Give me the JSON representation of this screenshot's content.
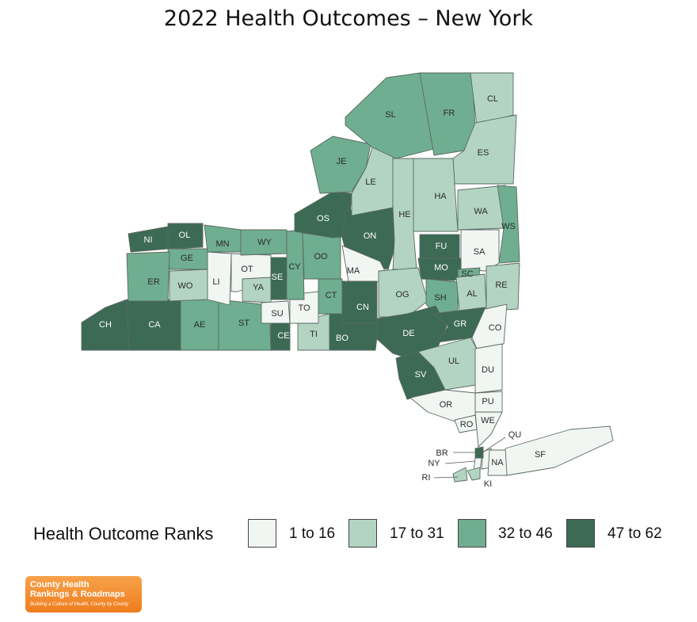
{
  "title": "2022 Health Outcomes – New York",
  "colors": {
    "q1": "#f1f6f3",
    "q2": "#b3d4c2",
    "q3": "#6fae90",
    "q4": "#3c6a55",
    "outline": "#5a6a62"
  },
  "legend": {
    "title": "Health Outcome Ranks",
    "items": [
      {
        "label": "1 to 16",
        "color": "#f1f6f3"
      },
      {
        "label": "17 to 31",
        "color": "#b3d4c2"
      },
      {
        "label": "32 to 46",
        "color": "#6fae90"
      },
      {
        "label": "47 to 62",
        "color": "#3c6a55"
      }
    ]
  },
  "logo": {
    "line1": "County Health",
    "line2": "Rankings & Roadmaps",
    "tagline": "Building a Culture of Health, County by County"
  },
  "counties": [
    {
      "code": "CH",
      "rank": "47 to 62"
    },
    {
      "code": "CA",
      "rank": "47 to 62"
    },
    {
      "code": "AE",
      "rank": "32 to 46"
    },
    {
      "code": "ST",
      "rank": "32 to 46"
    },
    {
      "code": "CE",
      "rank": "47 to 62"
    },
    {
      "code": "TI",
      "rank": "17 to 31"
    },
    {
      "code": "BO",
      "rank": "47 to 62"
    },
    {
      "code": "NI",
      "rank": "47 to 62"
    },
    {
      "code": "OL",
      "rank": "47 to 62"
    },
    {
      "code": "GE",
      "rank": "32 to 46"
    },
    {
      "code": "ER",
      "rank": "32 to 46"
    },
    {
      "code": "WO",
      "rank": "17 to 31"
    },
    {
      "code": "LI",
      "rank": "1 to 16"
    },
    {
      "code": "MN",
      "rank": "32 to 46"
    },
    {
      "code": "OT",
      "rank": "1 to 16"
    },
    {
      "code": "YA",
      "rank": "17 to 31"
    },
    {
      "code": "WY",
      "rank": "32 to 46"
    },
    {
      "code": "SE",
      "rank": "47 to 62"
    },
    {
      "code": "SU",
      "rank": "1 to 16"
    },
    {
      "code": "TO",
      "rank": "1 to 16"
    },
    {
      "code": "CY",
      "rank": "32 to 46"
    },
    {
      "code": "OO",
      "rank": "32 to 46"
    },
    {
      "code": "CT",
      "rank": "32 to 46"
    },
    {
      "code": "OS",
      "rank": "47 to 62"
    },
    {
      "code": "ON",
      "rank": "47 to 62"
    },
    {
      "code": "MA",
      "rank": "1 to 16"
    },
    {
      "code": "CN",
      "rank": "47 to 62"
    },
    {
      "code": "JE",
      "rank": "32 to 46"
    },
    {
      "code": "LE",
      "rank": "17 to 31"
    },
    {
      "code": "SL",
      "rank": "32 to 46"
    },
    {
      "code": "FR",
      "rank": "32 to 46"
    },
    {
      "code": "CL",
      "rank": "17 to 31"
    },
    {
      "code": "ES",
      "rank": "17 to 31"
    },
    {
      "code": "HA",
      "rank": "17 to 31"
    },
    {
      "code": "HE",
      "rank": "17 to 31"
    },
    {
      "code": "WA",
      "rank": "17 to 31"
    },
    {
      "code": "WS",
      "rank": "32 to 46"
    },
    {
      "code": "SA",
      "rank": "1 to 16"
    },
    {
      "code": "FU",
      "rank": "47 to 62"
    },
    {
      "code": "MO",
      "rank": "47 to 62"
    },
    {
      "code": "SC",
      "rank": "32 to 46"
    },
    {
      "code": "OG",
      "rank": "17 to 31"
    },
    {
      "code": "SH",
      "rank": "32 to 46"
    },
    {
      "code": "AL",
      "rank": "17 to 31"
    },
    {
      "code": "RE",
      "rank": "17 to 31"
    },
    {
      "code": "DE",
      "rank": "47 to 62"
    },
    {
      "code": "GR",
      "rank": "47 to 62"
    },
    {
      "code": "CO",
      "rank": "1 to 16"
    },
    {
      "code": "UL",
      "rank": "17 to 31"
    },
    {
      "code": "DU",
      "rank": "1 to 16"
    },
    {
      "code": "SV",
      "rank": "47 to 62"
    },
    {
      "code": "OR",
      "rank": "1 to 16"
    },
    {
      "code": "PU",
      "rank": "1 to 16"
    },
    {
      "code": "RO",
      "rank": "1 to 16"
    },
    {
      "code": "WE",
      "rank": "1 to 16"
    },
    {
      "code": "QU",
      "rank": "1 to 16"
    },
    {
      "code": "BR",
      "rank": "47 to 62"
    },
    {
      "code": "NY",
      "rank": "1 to 16"
    },
    {
      "code": "RI",
      "rank": "17 to 31"
    },
    {
      "code": "NA",
      "rank": "1 to 16"
    },
    {
      "code": "KI",
      "rank": "17 to 31"
    },
    {
      "code": "SF",
      "rank": "1 to 16"
    }
  ]
}
